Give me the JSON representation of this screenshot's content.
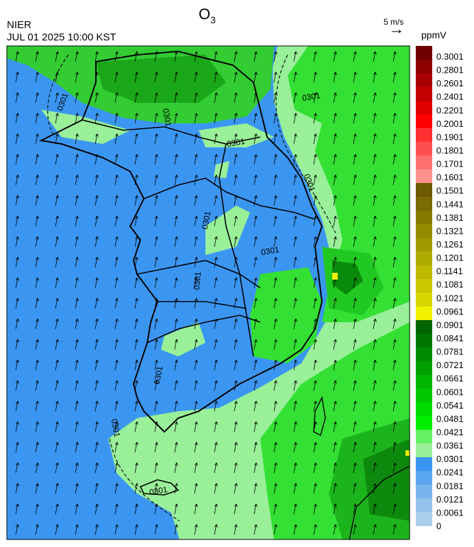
{
  "header": {
    "title": {
      "main": "O",
      "sub": "3"
    },
    "agency": "NIER",
    "datetime": "JUL 01 2025 10:00 KST",
    "wind_scale": "5 m/s"
  },
  "map": {
    "contour_labels": [
      "0301",
      "0301",
      "0301",
      "0301",
      "0301",
      "0301",
      "0301",
      "0301",
      "0301",
      "0301",
      "0301"
    ]
  },
  "colorbar": {
    "unit": "ppmV",
    "levels": [
      0.3001,
      0.2801,
      0.2601,
      0.2401,
      0.2201,
      0.2001,
      0.1901,
      0.1801,
      0.1701,
      0.1601,
      0.1501,
      0.1441,
      0.1381,
      0.1321,
      0.1261,
      0.1201,
      0.1141,
      0.1081,
      0.1021,
      0.0961,
      0.0901,
      0.0841,
      0.0781,
      0.0721,
      0.0661,
      0.0601,
      0.0541,
      0.0481,
      0.0421,
      0.0361,
      0.0301,
      0.0241,
      0.0181,
      0.0121,
      0.0061,
      0
    ],
    "colors": [
      "#6e0000",
      "#8c0000",
      "#a80000",
      "#c40000",
      "#e00000",
      "#ff0000",
      "#ff3030",
      "#ff5050",
      "#ff7070",
      "#ff9090",
      "#6e5a00",
      "#7a6a00",
      "#877a00",
      "#958a00",
      "#a39a00",
      "#b0aa00",
      "#bdb800",
      "#cac600",
      "#d7d400",
      "#f0f000",
      "#006400",
      "#007800",
      "#008c00",
      "#00a000",
      "#00b400",
      "#00c800",
      "#00dc00",
      "#00f000",
      "#66f066",
      "#99f099",
      "#3b96f2",
      "#5aa6ee",
      "#78b4ec",
      "#93c2ea",
      "#a8d0ea"
    ]
  }
}
